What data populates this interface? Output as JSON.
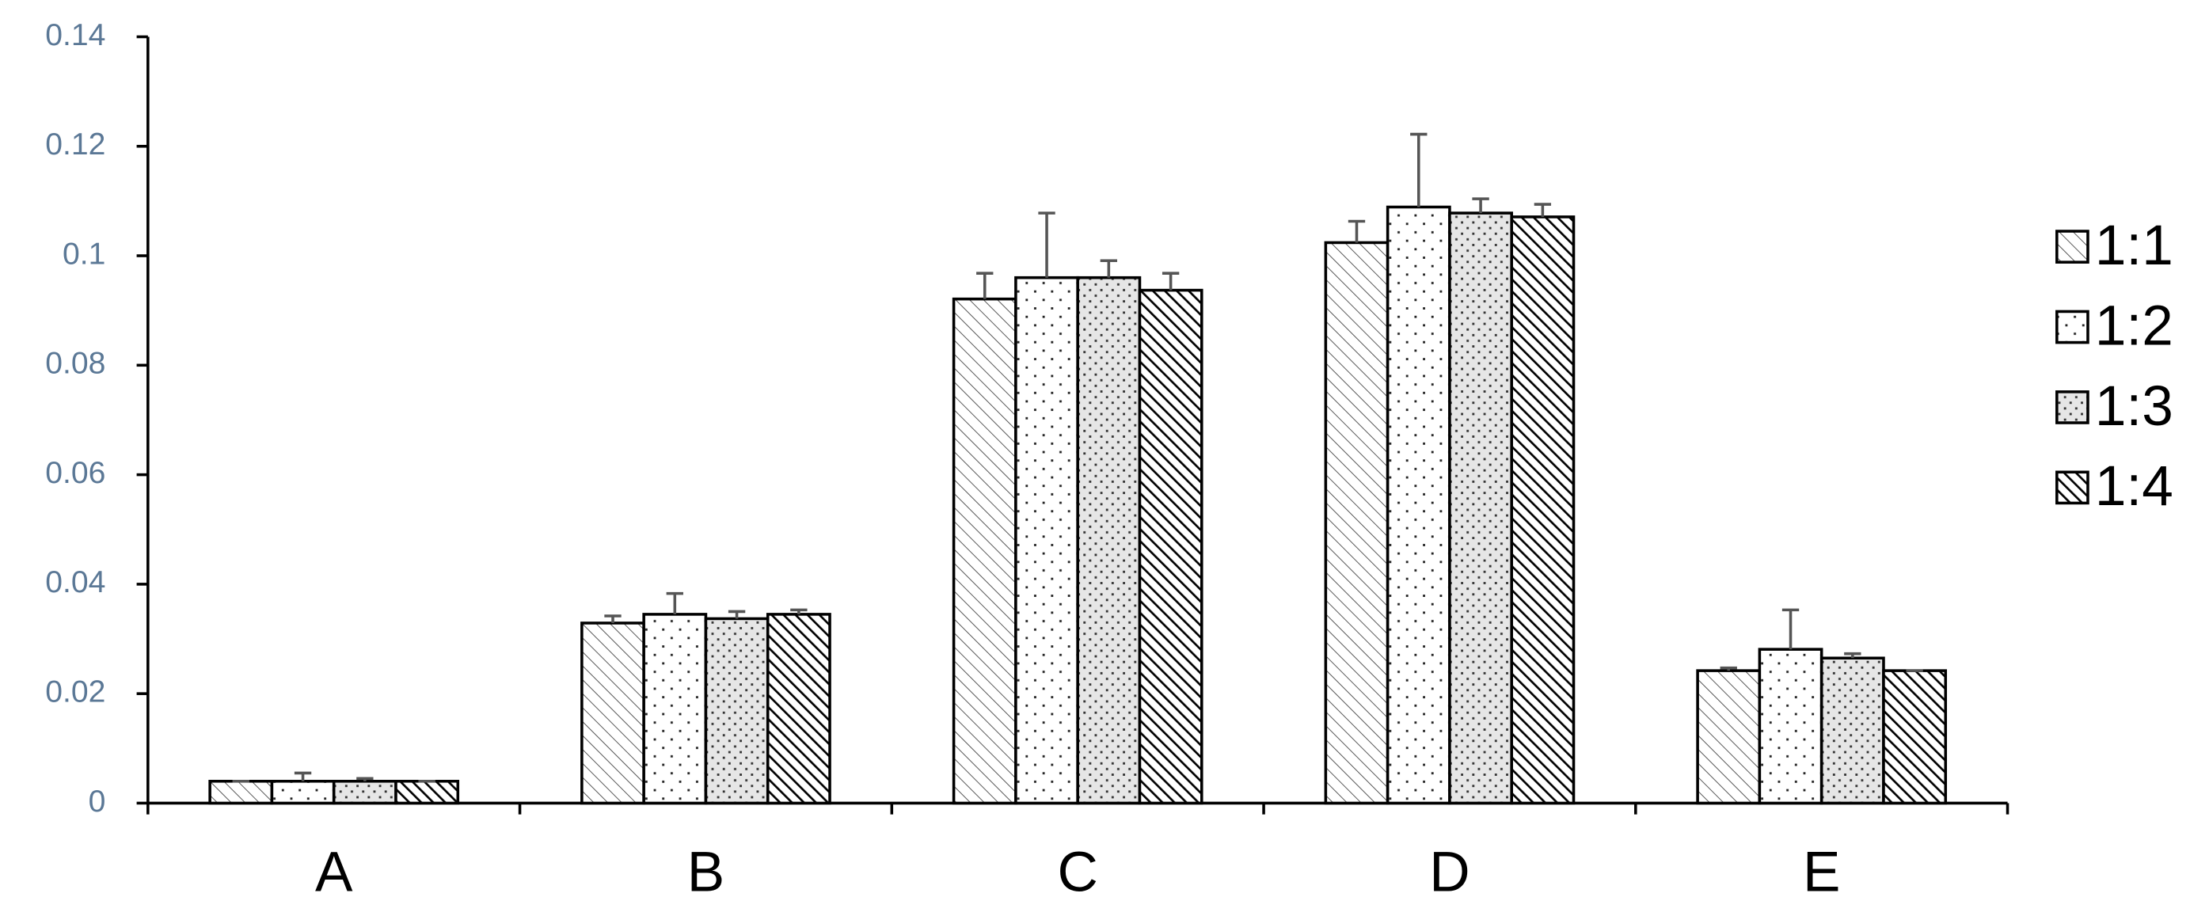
{
  "chart_data": {
    "type": "bar",
    "categories": [
      "A",
      "B",
      "C",
      "D",
      "E"
    ],
    "series": [
      {
        "name": "1:1",
        "color": "#000000",
        "pattern": "diag-light",
        "values": [
          0.004,
          0.0329,
          0.0921,
          0.1024,
          0.0242
        ],
        "errors": [
          0,
          0.0013,
          0.0047,
          0.0039,
          0.0005
        ]
      },
      {
        "name": "1:2",
        "color": "#000000",
        "pattern": "dots-white",
        "values": [
          0.004,
          0.0345,
          0.096,
          0.1089,
          0.0281
        ],
        "errors": [
          0.0015,
          0.0038,
          0.0118,
          0.0133,
          0.0072
        ]
      },
      {
        "name": "1:3",
        "color": "#000000",
        "pattern": "dots-gray",
        "values": [
          0.004,
          0.0337,
          0.096,
          0.1078,
          0.0265
        ],
        "errors": [
          0.0005,
          0.0013,
          0.0031,
          0.0026,
          0.0008
        ]
      },
      {
        "name": "1:4",
        "color": "#000000",
        "pattern": "diag-dense",
        "values": [
          0.004,
          0.0345,
          0.0937,
          0.1071,
          0.0242
        ],
        "errors": [
          0,
          0.0008,
          0.0031,
          0.0023,
          0
        ]
      }
    ],
    "ylim": [
      0,
      0.14
    ],
    "yticks": [
      0,
      0.02,
      0.04,
      0.06,
      0.08,
      0.1,
      0.12,
      0.14
    ],
    "grid": false,
    "legend": "right"
  }
}
